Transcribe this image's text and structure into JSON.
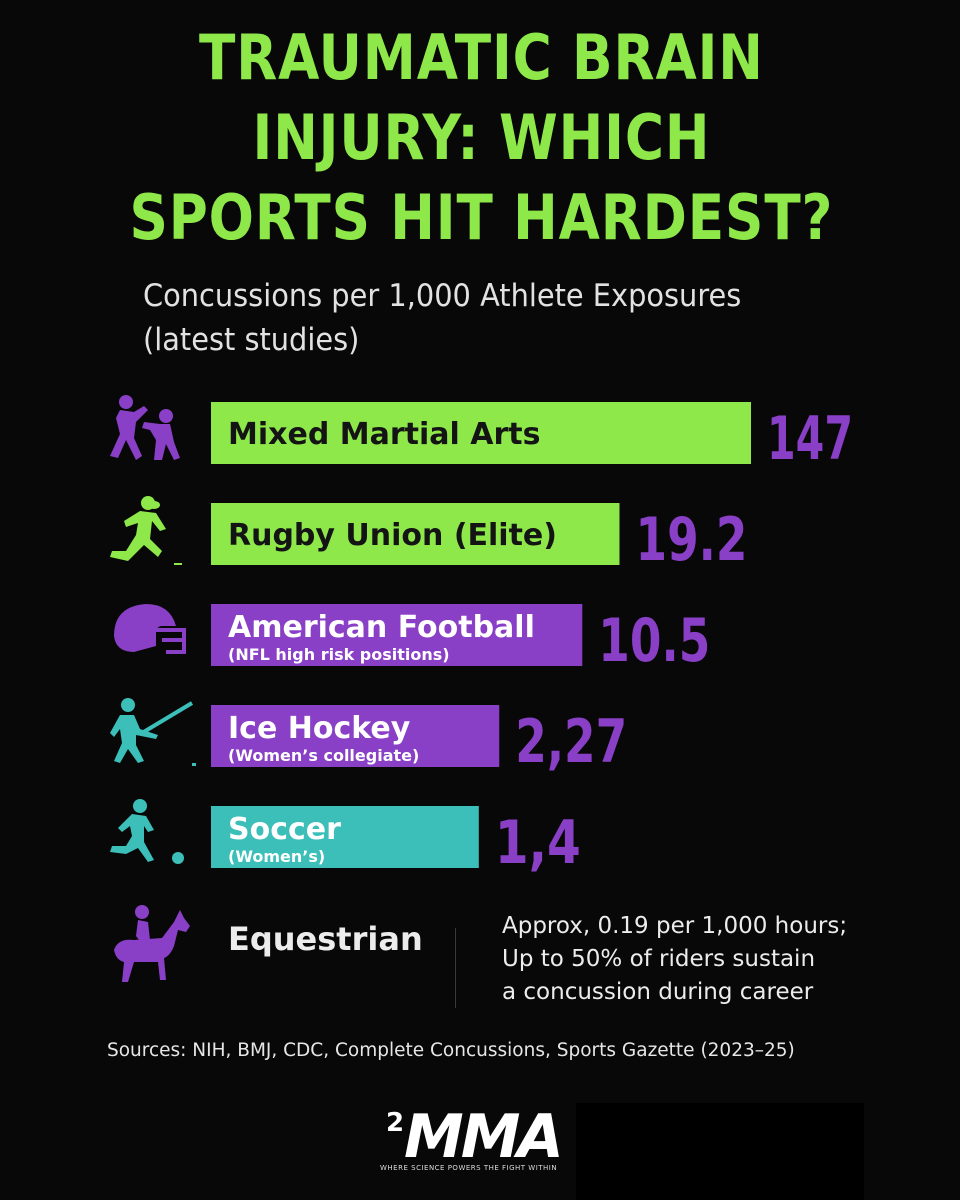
{
  "title_lines": [
    "TRAUMATIC BRAIN",
    "INJURY: WHICH",
    "SPORTS HIT HARDEST?"
  ],
  "subtitle_lines": [
    "Concussions per 1,000 Athlete Exposures",
    "(latest studies)"
  ],
  "colors": {
    "green": "#8ee84a",
    "purple": "#8a3fc7",
    "teal": "#3bbfb8",
    "background": "#080808"
  },
  "chart_data": {
    "type": "bar",
    "orientation": "horizontal",
    "unit": "concussions per 1,000 athlete exposures",
    "categories": [
      "Mixed Martial Arts",
      "Rugby Union (Elite)",
      "American Football",
      "Ice Hockey",
      "Soccer"
    ],
    "sublabels": [
      "",
      "",
      "(NFL high risk positions)",
      "(Women’s collegiate)",
      "(Women’s)"
    ],
    "value_labels": [
      "147",
      "19.2",
      "10.5",
      "2,27",
      "1,4"
    ],
    "values": [
      147,
      19.2,
      10.5,
      2.27,
      1.4
    ],
    "bar_colors": [
      "#8ee84a",
      "#8ee84a",
      "#8a3fc7",
      "#8a3fc7",
      "#3bbfb8"
    ],
    "value_colors": [
      "#8a3fc7",
      "#8a3fc7",
      "#8a3fc7",
      "#8a3fc7",
      "#8a3fc7"
    ],
    "icons": [
      "mma-fighters-icon",
      "rugby-player-icon",
      "football-helmet-icon",
      "hockey-player-icon",
      "soccer-player-icon"
    ],
    "icon_colors": [
      "#8a3fc7",
      "#8ee84a",
      "#8a3fc7",
      "#3bbfb8",
      "#3bbfb8"
    ],
    "scale_note": "bars not to linear scale"
  },
  "equestrian": {
    "label": "Equestrian",
    "icon": "horse-rider-icon",
    "note_lines": [
      "Approx, 0.19 per 1,000 hours;",
      "Up to 50% of riders sustain",
      "a concussion during career"
    ]
  },
  "sources": "Sources: NIH, BMJ, CDC, Complete Concussions, Sports Gazette (2023–25)",
  "logo": {
    "superscript": "2",
    "wordmark": "MMA",
    "tagline": "WHERE SCIENCE POWERS THE FIGHT WITHIN"
  }
}
